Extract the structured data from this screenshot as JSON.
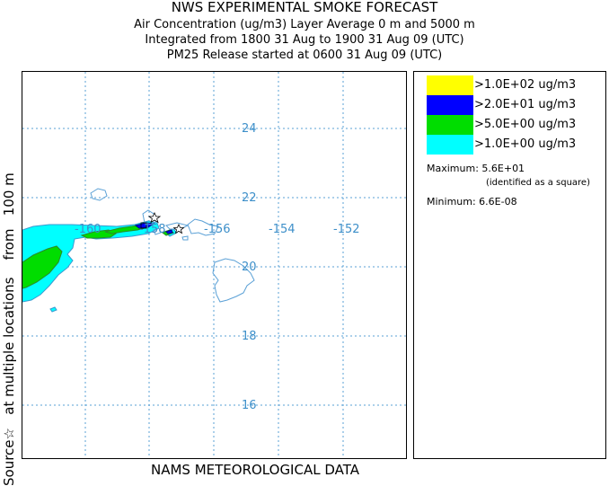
{
  "title": {
    "main": "NWS EXPERIMENTAL SMOKE FORECAST",
    "line1": "Air Concentration (ug/m3) Layer Average    0 m and  5000 m",
    "line2": "Integrated from 1800 31 Aug to 1900 31 Aug 09 (UTC)",
    "line3": "PM25 Release started at 0600 31 Aug 09 (UTC)"
  },
  "side_label": "Source☆   at multiple locations    from   100 m",
  "bottom_label": "NAMS METEOROLOGICAL DATA",
  "map": {
    "longitude_labels": [
      "-160",
      "-158",
      "-156",
      "-154",
      "-152"
    ],
    "latitude_labels": [
      "24",
      "22",
      "20",
      "18",
      "16"
    ]
  },
  "legend": {
    "items": [
      {
        "label": ">1.0E+02 ug/m3",
        "color": "#ffff00"
      },
      {
        "label": ">2.0E+01 ug/m3",
        "color": "#0000ff"
      },
      {
        "label": ">5.0E+00 ug/m3",
        "color": "#00dd00"
      },
      {
        "label": ">1.0E+00 ug/m3",
        "color": "#00ffff"
      }
    ],
    "maximum": "Maximum: 5.6E+01",
    "maximum_note": "(identified as a square)",
    "minimum": "Minimum: 6.6E-08"
  },
  "colors": {
    "grid": "#5aa0d6",
    "coast": "#5aa0d6",
    "label": "#3d8fc9"
  }
}
